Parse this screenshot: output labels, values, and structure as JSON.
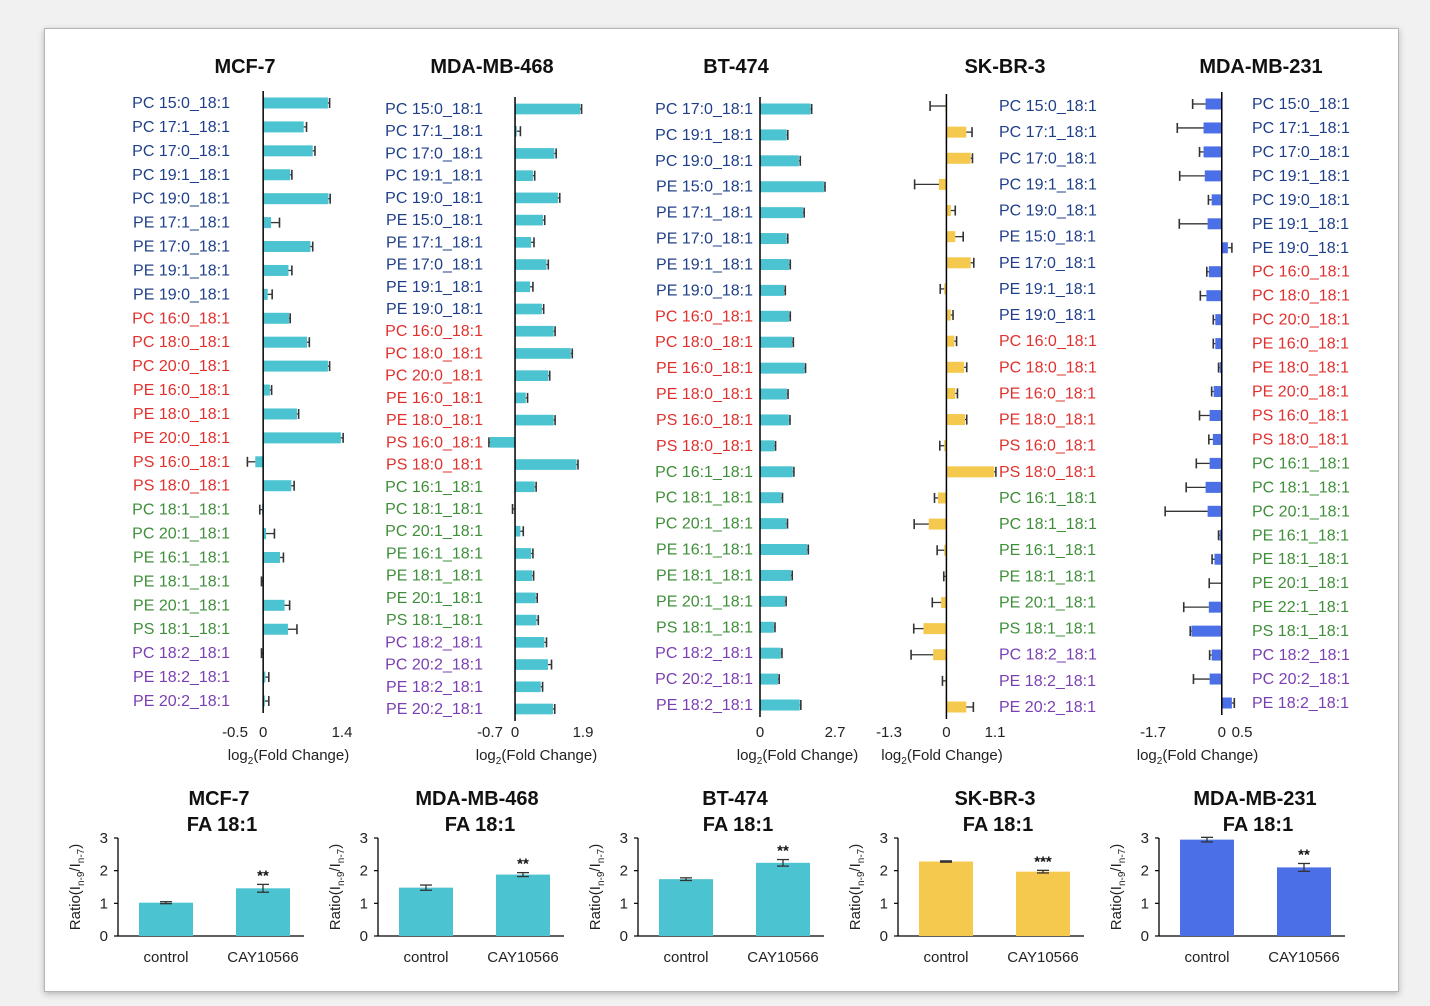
{
  "colors": {
    "saturated": "#1f3f8a",
    "saturated_pe_pc": "#1f3f8a",
    "monounsaturated_sat": "#e0312e",
    "monounsaturated": "#3f8f3a",
    "polyunsaturated": "#7a3fb3",
    "cyan_bar": "#4bc3d0",
    "yellow_bar": "#f5c94e",
    "blue_bar": "#4b6fe6",
    "error_bar": "#333333"
  },
  "chart_data": [
    {
      "type": "bar",
      "orientation": "horizontal",
      "title": "MCF-7",
      "color": "cyan",
      "label_side": "left",
      "xlim": [
        -0.5,
        1.4
      ],
      "xticks": [
        "-0.5",
        "0",
        "1.4"
      ],
      "categories": [
        "PC 15:0_18:1",
        "PC 17:1_18:1",
        "PC 17:0_18:1",
        "PC 19:1_18:1",
        "PC 19:0_18:1",
        "PE 17:1_18:1",
        "PE 17:0_18:1",
        "PE 19:1_18:1",
        "PE 19:0_18:1",
        "PC 16:0_18:1",
        "PC 18:0_18:1",
        "PC 20:0_18:1",
        "PE 16:0_18:1",
        "PE 18:0_18:1",
        "PE 20:0_18:1",
        "PS 16:0_18:1",
        "PS 18:0_18:1",
        "PC 18:1_18:1",
        "PC 20:1_18:1",
        "PE 16:1_18:1",
        "PE 18:1_18:1",
        "PE 20:1_18:1",
        "PS 18:1_18:1",
        "PC 18:2_18:1",
        "PE 18:2_18:1",
        "PE 20:2_18:1"
      ],
      "groups": [
        "sat",
        "sat",
        "sat",
        "sat",
        "sat",
        "sat",
        "sat",
        "sat",
        "sat",
        "red",
        "red",
        "red",
        "red",
        "red",
        "red",
        "red",
        "red",
        "green",
        "green",
        "green",
        "green",
        "green",
        "green",
        "purple",
        "purple",
        "purple"
      ],
      "values": [
        1.15,
        0.72,
        0.88,
        0.48,
        1.16,
        0.14,
        0.84,
        0.45,
        0.08,
        0.46,
        0.78,
        1.15,
        0.12,
        0.6,
        1.38,
        -0.14,
        0.5,
        -0.02,
        0.05,
        0.3,
        -0.01,
        0.38,
        0.44,
        -0.01,
        0.04,
        0.03
      ],
      "errors": [
        0.03,
        0.05,
        0.04,
        0.03,
        0.03,
        0.15,
        0.04,
        0.06,
        0.08,
        0.02,
        0.04,
        0.03,
        0.03,
        0.03,
        0.04,
        0.14,
        0.05,
        0.04,
        0.15,
        0.06,
        0.02,
        0.09,
        0.16,
        0.02,
        0.06,
        0.07
      ],
      "xlabel": "log",
      "xlabel_sub": "2",
      "xlabel_rest": "(Fold Change)"
    },
    {
      "type": "bar",
      "orientation": "horizontal",
      "title": "MDA-MB-468",
      "color": "cyan",
      "label_side": "left",
      "xlim": [
        -0.7,
        1.9
      ],
      "xticks": [
        "-0.7",
        "0",
        "1.9"
      ],
      "categories": [
        "PC 15:0_18:1",
        "PC 17:1_18:1",
        "PC 17:0_18:1",
        "PC 19:1_18:1",
        "PC 19:0_18:1",
        "PE 15:0_18:1",
        "PE 17:1_18:1",
        "PE 17:0_18:1",
        "PE 19:1_18:1",
        "PE 19:0_18:1",
        "PC 16:0_18:1",
        "PC 18:0_18:1",
        "PC 20:0_18:1",
        "PE 16:0_18:1",
        "PE 18:0_18:1",
        "PS 16:0_18:1",
        "PS 18:0_18:1",
        "PC 16:1_18:1",
        "PC 18:1_18:1",
        "PC 20:1_18:1",
        "PE 16:1_18:1",
        "PE 18:1_18:1",
        "PE 20:1_18:1",
        "PS 18:1_18:1",
        "PC 18:2_18:1",
        "PC 20:2_18:1",
        "PE 18:2_18:1",
        "PE 20:2_18:1"
      ],
      "groups": [
        "sat",
        "sat",
        "sat",
        "sat",
        "sat",
        "sat",
        "sat",
        "sat",
        "sat",
        "sat",
        "red",
        "red",
        "red",
        "red",
        "red",
        "red",
        "red",
        "green",
        "green",
        "green",
        "green",
        "green",
        "green",
        "green",
        "purple",
        "purple",
        "purple",
        "purple"
      ],
      "values": [
        1.82,
        0.05,
        1.1,
        0.5,
        1.2,
        0.78,
        0.45,
        0.88,
        0.42,
        0.75,
        1.08,
        1.56,
        0.93,
        0.3,
        1.08,
        -0.7,
        1.72,
        0.55,
        -0.02,
        0.15,
        0.45,
        0.48,
        0.58,
        0.6,
        0.82,
        0.92,
        0.72,
        1.06
      ],
      "errors": [
        0.04,
        0.1,
        0.05,
        0.05,
        0.05,
        0.05,
        0.08,
        0.05,
        0.08,
        0.05,
        0.04,
        0.04,
        0.04,
        0.05,
        0.04,
        0.03,
        0.04,
        0.04,
        0.05,
        0.08,
        0.05,
        0.04,
        0.04,
        0.05,
        0.06,
        0.1,
        0.05,
        0.05
      ],
      "xlabel": "log",
      "xlabel_sub": "2",
      "xlabel_rest": "(Fold Change)"
    },
    {
      "type": "bar",
      "orientation": "horizontal",
      "title": "BT-474",
      "color": "cyan",
      "label_side": "left",
      "xlim": [
        0,
        2.7
      ],
      "xticks": [
        "0",
        "2.7"
      ],
      "categories": [
        "PC 17:0_18:1",
        "PC 19:1_18:1",
        "PC 19:0_18:1",
        "PE 15:0_18:1",
        "PE 17:1_18:1",
        "PE 17:0_18:1",
        "PE 19:1_18:1",
        "PE 19:0_18:1",
        "PC 16:0_18:1",
        "PC 18:0_18:1",
        "PE 16:0_18:1",
        "PE 18:0_18:1",
        "PS 16:0_18:1",
        "PS 18:0_18:1",
        "PC 16:1_18:1",
        "PC 18:1_18:1",
        "PC 20:1_18:1",
        "PE 16:1_18:1",
        "PE 18:1_18:1",
        "PE 20:1_18:1",
        "PS 18:1_18:1",
        "PC 18:2_18:1",
        "PC 20:2_18:1",
        "PE 18:2_18:1"
      ],
      "groups": [
        "sat",
        "sat",
        "sat",
        "sat",
        "sat",
        "sat",
        "sat",
        "sat",
        "red",
        "red",
        "red",
        "red",
        "red",
        "red",
        "green",
        "green",
        "green",
        "green",
        "green",
        "green",
        "green",
        "purple",
        "purple",
        "purple"
      ],
      "values": [
        1.82,
        0.96,
        1.4,
        2.3,
        1.55,
        0.96,
        1.05,
        0.87,
        1.05,
        1.16,
        1.6,
        0.97,
        1.04,
        0.52,
        1.18,
        0.77,
        0.95,
        1.7,
        1.12,
        0.9,
        0.5,
        0.75,
        0.65,
        1.43
      ],
      "errors": [
        0.04,
        0.04,
        0.05,
        0.04,
        0.04,
        0.04,
        0.04,
        0.04,
        0.04,
        0.04,
        0.04,
        0.04,
        0.04,
        0.04,
        0.04,
        0.04,
        0.04,
        0.04,
        0.04,
        0.04,
        0.04,
        0.04,
        0.04,
        0.04
      ],
      "xlabel": "log",
      "xlabel_sub": "2",
      "xlabel_rest": "(Fold Change)"
    },
    {
      "type": "bar",
      "orientation": "horizontal",
      "title": "SK-BR-3",
      "color": "yellow",
      "label_side": "right",
      "xlim": [
        -1.3,
        1.1
      ],
      "xticks": [
        "-1.3",
        "0",
        "1.1"
      ],
      "categories": [
        "PC 15:0_18:1",
        "PC 17:1_18:1",
        "PC 17:0_18:1",
        "PC 19:1_18:1",
        "PC 19:0_18:1",
        "PE 15:0_18:1",
        "PE 17:0_18:1",
        "PE 19:1_18:1",
        "PE 19:0_18:1",
        "PC 16:0_18:1",
        "PC 18:0_18:1",
        "PE 16:0_18:1",
        "PE 18:0_18:1",
        "PS 16:0_18:1",
        "PS 18:0_18:1",
        "PC 16:1_18:1",
        "PC 18:1_18:1",
        "PE 16:1_18:1",
        "PE 18:1_18:1",
        "PE 20:1_18:1",
        "PS 18:1_18:1",
        "PC 18:2_18:1",
        "PE 18:2_18:1",
        "PE 20:2_18:1"
      ],
      "groups": [
        "sat",
        "sat",
        "sat",
        "sat",
        "sat",
        "sat",
        "sat",
        "sat",
        "sat",
        "red",
        "red",
        "red",
        "red",
        "red",
        "red",
        "green",
        "green",
        "green",
        "green",
        "green",
        "green",
        "purple",
        "purple",
        "purple"
      ],
      "values": [
        -0.02,
        0.45,
        0.55,
        -0.17,
        0.1,
        0.2,
        0.55,
        -0.05,
        0.1,
        0.18,
        0.4,
        0.2,
        0.42,
        -0.05,
        1.08,
        -0.19,
        -0.4,
        -0.05,
        -0.02,
        -0.12,
        -0.52,
        -0.3,
        -0.02,
        0.45
      ],
      "errors": [
        0.35,
        0.13,
        0.04,
        0.55,
        0.1,
        0.18,
        0.07,
        0.09,
        0.05,
        0.05,
        0.06,
        0.05,
        0.04,
        0.1,
        0.04,
        0.08,
        0.33,
        0.16,
        0.04,
        0.2,
        0.22,
        0.5,
        0.07,
        0.16
      ],
      "xlabel": "log",
      "xlabel_sub": "2",
      "xlabel_rest": "(Fold Change)"
    },
    {
      "type": "bar",
      "orientation": "horizontal",
      "title": "MDA-MB-231",
      "color": "blue",
      "label_side": "right",
      "xlim": [
        -1.7,
        0.5
      ],
      "xticks": [
        "-1.7",
        "0",
        "0.5"
      ],
      "categories": [
        "PC 15:0_18:1",
        "PC 17:1_18:1",
        "PC 17:0_18:1",
        "PC 19:1_18:1",
        "PC 19:0_18:1",
        "PE 19:1_18:1",
        "PE 19:0_18:1",
        "PC 16:0_18:1",
        "PC 18:0_18:1",
        "PC 20:0_18:1",
        "PE 16:0_18:1",
        "PE 18:0_18:1",
        "PE 20:0_18:1",
        "PS 16:0_18:1",
        "PS 18:0_18:1",
        "PC 16:1_18:1",
        "PC 18:1_18:1",
        "PC 20:1_18:1",
        "PE 16:1_18:1",
        "PE 18:1_18:1",
        "PE 20:1_18:1",
        "PE 22:1_18:1",
        "PS 18:1_18:1",
        "PC 18:2_18:1",
        "PC 20:2_18:1",
        "PE 18:2_18:1"
      ],
      "groups": [
        "sat",
        "sat",
        "sat",
        "sat",
        "sat",
        "sat",
        "sat",
        "red",
        "red",
        "red",
        "red",
        "red",
        "red",
        "red",
        "red",
        "green",
        "green",
        "green",
        "green",
        "green",
        "green",
        "green",
        "green",
        "purple",
        "purple",
        "purple"
      ],
      "values": [
        -0.4,
        -0.45,
        -0.45,
        -0.42,
        -0.25,
        -0.35,
        0.15,
        -0.32,
        -0.38,
        -0.16,
        -0.16,
        -0.05,
        -0.2,
        -0.3,
        -0.22,
        -0.3,
        -0.4,
        -0.35,
        -0.05,
        -0.18,
        -0.01,
        -0.32,
        -0.75,
        -0.25,
        -0.3,
        0.25
      ],
      "errors": [
        0.32,
        0.65,
        0.1,
        0.62,
        0.08,
        0.7,
        0.1,
        0.05,
        0.15,
        0.05,
        0.05,
        0.03,
        0.05,
        0.25,
        0.1,
        0.33,
        0.48,
        1.05,
        0.03,
        0.06,
        0.3,
        0.62,
        0.03,
        0.05,
        0.4,
        0.06
      ],
      "xlabel": "log",
      "xlabel_sub": "2",
      "xlabel_rest": "(Fold Change)"
    },
    {
      "type": "bar",
      "title": "MCF-7",
      "subtitle": "FA 18:1",
      "color": "cyan",
      "categories": [
        "control",
        "CAY10566"
      ],
      "values": [
        1.02,
        1.46
      ],
      "errors": [
        0.03,
        0.12
      ],
      "significance": [
        "",
        "**"
      ],
      "ylim": [
        0,
        3
      ],
      "yticks": [
        "0",
        "1",
        "2",
        "3"
      ],
      "ylabel": "Ratio(I",
      "ylabel_sub1": "n-9",
      "ylabel_mid": "/I",
      "ylabel_sub2": "n-7",
      "ylabel_end": ")"
    },
    {
      "type": "bar",
      "title": "MDA-MB-468",
      "subtitle": "FA 18:1",
      "color": "cyan",
      "categories": [
        "control",
        "CAY10566"
      ],
      "values": [
        1.48,
        1.88
      ],
      "errors": [
        0.08,
        0.06
      ],
      "significance": [
        "",
        "**"
      ],
      "ylim": [
        0,
        3
      ],
      "yticks": [
        "0",
        "1",
        "2",
        "3"
      ],
      "ylabel": "Ratio(I",
      "ylabel_sub1": "n-9",
      "ylabel_mid": "/I",
      "ylabel_sub2": "n-7",
      "ylabel_end": ")"
    },
    {
      "type": "bar",
      "title": "BT-474",
      "subtitle": "FA 18:1",
      "color": "cyan",
      "categories": [
        "control",
        "CAY10566"
      ],
      "values": [
        1.74,
        2.24
      ],
      "errors": [
        0.04,
        0.1
      ],
      "significance": [
        "",
        "**"
      ],
      "ylim": [
        0,
        3
      ],
      "yticks": [
        "0",
        "1",
        "2",
        "3"
      ],
      "ylabel": "Ratio(I",
      "ylabel_sub1": "n-9",
      "ylabel_mid": "/I",
      "ylabel_sub2": "n-7",
      "ylabel_end": ")"
    },
    {
      "type": "bar",
      "title": "SK-BR-3",
      "subtitle": "FA 18:1",
      "color": "yellow",
      "categories": [
        "control",
        "CAY10566"
      ],
      "values": [
        2.28,
        1.97
      ],
      "errors": [
        0.02,
        0.04
      ],
      "significance": [
        "",
        "***"
      ],
      "ylim": [
        0,
        3
      ],
      "yticks": [
        "0",
        "1",
        "2",
        "3"
      ],
      "ylabel": "Ratio(I",
      "ylabel_sub1": "n-9",
      "ylabel_mid": "/I",
      "ylabel_sub2": "n-7",
      "ylabel_end": ")"
    },
    {
      "type": "bar",
      "title": "MDA-MB-231",
      "subtitle": "FA 18:1",
      "color": "blue",
      "categories": [
        "control",
        "CAY10566"
      ],
      "values": [
        2.95,
        2.1
      ],
      "errors": [
        0.07,
        0.12
      ],
      "significance": [
        "",
        "**"
      ],
      "ylim": [
        0,
        3
      ],
      "yticks": [
        "0",
        "1",
        "2",
        "3"
      ],
      "ylabel": "Ratio(I",
      "ylabel_sub1": "n-9",
      "ylabel_mid": "/I",
      "ylabel_sub2": "n-7",
      "ylabel_end": ")"
    }
  ]
}
